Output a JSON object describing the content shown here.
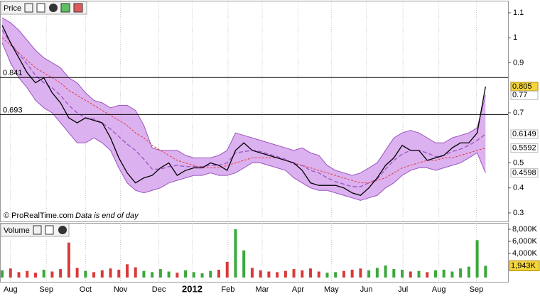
{
  "chart_data": [
    {
      "type": "line",
      "title": "Price",
      "annotations": [
        "© ProRealTime.com",
        "Data is end of day"
      ],
      "xlim": [
        -0.26,
        60.7
      ],
      "xticks": [
        {
          "value": 1,
          "label": "Aug"
        },
        {
          "value": 5.3,
          "label": "Sep"
        },
        {
          "value": 10,
          "label": "Oct"
        },
        {
          "value": 14.2,
          "label": "Nov"
        },
        {
          "value": 18.8,
          "label": "Dec"
        },
        {
          "value": 22.8,
          "label": "2012"
        },
        {
          "value": 27.1,
          "label": "Feb"
        },
        {
          "value": 31.2,
          "label": "Mar"
        },
        {
          "value": 35.5,
          "label": "Apr"
        },
        {
          "value": 39.5,
          "label": "May"
        },
        {
          "value": 43.7,
          "label": "Jun"
        },
        {
          "value": 48.1,
          "label": "Jul"
        },
        {
          "value": 52.4,
          "label": "Aug"
        },
        {
          "value": 56.9,
          "label": "Sep"
        }
      ],
      "ylim": [
        0.263,
        1.151
      ],
      "yticks": [
        0.3,
        0.4,
        0.5,
        0.7,
        0.9,
        1,
        1.1
      ],
      "values": [
        1.05,
        0.98,
        0.92,
        0.86,
        0.82,
        0.84,
        0.78,
        0.74,
        0.68,
        0.66,
        0.68,
        0.67,
        0.66,
        0.6,
        0.52,
        0.46,
        0.42,
        0.44,
        0.45,
        0.48,
        0.5,
        0.45,
        0.47,
        0.48,
        0.48,
        0.5,
        0.49,
        0.47,
        0.55,
        0.58,
        0.55,
        0.54,
        0.53,
        0.52,
        0.51,
        0.5,
        0.47,
        0.42,
        0.41,
        0.41,
        0.41,
        0.4,
        0.38,
        0.37,
        0.4,
        0.44,
        0.49,
        0.52,
        0.57,
        0.55,
        0.55,
        0.51,
        0.52,
        0.53,
        0.56,
        0.58,
        0.58,
        0.62,
        0.805
      ],
      "color": "#000000",
      "bands": {
        "color": "#d6a3ec",
        "line_color": "#9a55c0",
        "upper": [
          1.08,
          1.06,
          1.03,
          0.99,
          0.95,
          0.92,
          0.9,
          0.88,
          0.84,
          0.82,
          0.78,
          0.75,
          0.74,
          0.72,
          0.73,
          0.73,
          0.71,
          0.65,
          0.56,
          0.55,
          0.55,
          0.55,
          0.53,
          0.52,
          0.52,
          0.52,
          0.53,
          0.55,
          0.62,
          0.61,
          0.6,
          0.59,
          0.58,
          0.57,
          0.56,
          0.55,
          0.56,
          0.54,
          0.53,
          0.49,
          0.47,
          0.46,
          0.45,
          0.46,
          0.48,
          0.5,
          0.55,
          0.6,
          0.62,
          0.63,
          0.62,
          0.6,
          0.58,
          0.58,
          0.6,
          0.61,
          0.62,
          0.64,
          0.77
        ],
        "middle": [
          1.03,
          0.98,
          0.935,
          0.895,
          0.85,
          0.82,
          0.8,
          0.77,
          0.73,
          0.7,
          0.68,
          0.675,
          0.66,
          0.635,
          0.605,
          0.575,
          0.55,
          0.515,
          0.475,
          0.475,
          0.485,
          0.49,
          0.485,
          0.485,
          0.485,
          0.49,
          0.49,
          0.5,
          0.54,
          0.545,
          0.55,
          0.545,
          0.535,
          0.525,
          0.515,
          0.495,
          0.49,
          0.47,
          0.46,
          0.44,
          0.425,
          0.415,
          0.405,
          0.405,
          0.42,
          0.435,
          0.475,
          0.51,
          0.535,
          0.55,
          0.55,
          0.54,
          0.525,
          0.53,
          0.545,
          0.555,
          0.57,
          0.59,
          0.6149
        ],
        "lower": [
          0.98,
          0.9,
          0.84,
          0.8,
          0.75,
          0.72,
          0.7,
          0.66,
          0.62,
          0.58,
          0.58,
          0.6,
          0.58,
          0.55,
          0.48,
          0.42,
          0.39,
          0.38,
          0.39,
          0.4,
          0.42,
          0.43,
          0.44,
          0.45,
          0.45,
          0.46,
          0.45,
          0.45,
          0.46,
          0.48,
          0.5,
          0.5,
          0.49,
          0.48,
          0.47,
          0.44,
          0.42,
          0.4,
          0.39,
          0.39,
          0.38,
          0.37,
          0.36,
          0.35,
          0.36,
          0.37,
          0.4,
          0.42,
          0.45,
          0.47,
          0.48,
          0.48,
          0.47,
          0.48,
          0.49,
          0.5,
          0.52,
          0.54,
          0.4598
        ]
      },
      "ma": {
        "color": "#e03c3c",
        "values": [
          1.0,
          0.97,
          0.94,
          0.91,
          0.88,
          0.86,
          0.84,
          0.82,
          0.79,
          0.77,
          0.75,
          0.73,
          0.71,
          0.69,
          0.67,
          0.65,
          0.62,
          0.6,
          0.57,
          0.55,
          0.53,
          0.51,
          0.5,
          0.49,
          0.48,
          0.48,
          0.48,
          0.49,
          0.5,
          0.51,
          0.52,
          0.52,
          0.52,
          0.52,
          0.51,
          0.5,
          0.49,
          0.48,
          0.47,
          0.46,
          0.45,
          0.44,
          0.43,
          0.42,
          0.42,
          0.43,
          0.44,
          0.46,
          0.48,
          0.49,
          0.5,
          0.51,
          0.51,
          0.52,
          0.52,
          0.53,
          0.54,
          0.55,
          0.5592
        ]
      },
      "hlines": [
        0.841,
        0.693
      ]
    },
    {
      "type": "bar",
      "title": "Volume",
      "ylim": [
        0,
        8000
      ],
      "yticks": [
        {
          "value": 4000,
          "label": "4,000K"
        },
        {
          "value": 6000,
          "label": "6,000K"
        },
        {
          "value": 8000,
          "label": "8,000K"
        }
      ],
      "values": [
        1200,
        1500,
        900,
        1100,
        800,
        1300,
        1000,
        1400,
        5800,
        1600,
        1100,
        900,
        1200,
        1500,
        1300,
        2200,
        1700,
        1100,
        900,
        1400,
        1000,
        800,
        1200,
        900,
        700,
        1100,
        1300,
        2600,
        8000,
        4500,
        1600,
        1200,
        1000,
        900,
        1100,
        1400,
        1200,
        1500,
        1000,
        800,
        900,
        1100,
        1300,
        1500,
        1200,
        1600,
        2000,
        1400,
        1300,
        1000,
        1100,
        900,
        1200,
        1300,
        1000,
        1500,
        1800,
        6200,
        1943
      ],
      "last_value_label": "1,943K",
      "up_color": "#3aa83a",
      "down_color": "#d83a3a"
    }
  ]
}
